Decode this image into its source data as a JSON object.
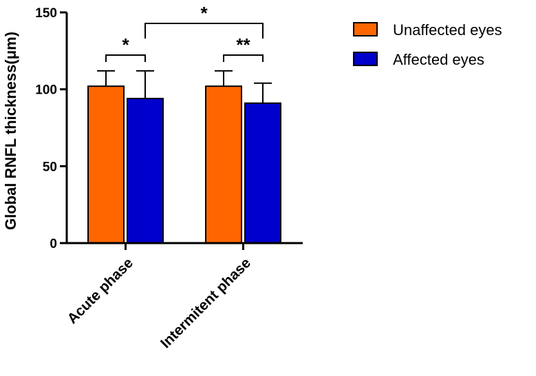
{
  "chart_data": {
    "type": "bar",
    "title": "",
    "xlabel": "",
    "ylabel": "Global RNFL thickness(μm)",
    "ylim": [
      0,
      150
    ],
    "yticks": [
      0,
      50,
      100,
      150
    ],
    "categories": [
      "Acute phase",
      "Intermitent phase"
    ],
    "series": [
      {
        "name": "Unaffected  eyes",
        "color": "#ff6600",
        "values": [
          102,
          102
        ],
        "errors": [
          10,
          10
        ]
      },
      {
        "name": "Affected  eyes",
        "color": "#0000cc",
        "values": [
          94,
          91
        ],
        "errors": [
          18,
          13
        ]
      }
    ],
    "significance": [
      {
        "label": "*",
        "from": {
          "category": 0,
          "series": 0
        },
        "to": {
          "category": 0,
          "series": 1
        }
      },
      {
        "label": "**",
        "from": {
          "category": 1,
          "series": 0
        },
        "to": {
          "category": 1,
          "series": 1
        }
      },
      {
        "label": "*",
        "from": {
          "category": 0,
          "series": 1
        },
        "to": {
          "category": 1,
          "series": 1
        }
      }
    ],
    "legend_position": "top-right"
  }
}
